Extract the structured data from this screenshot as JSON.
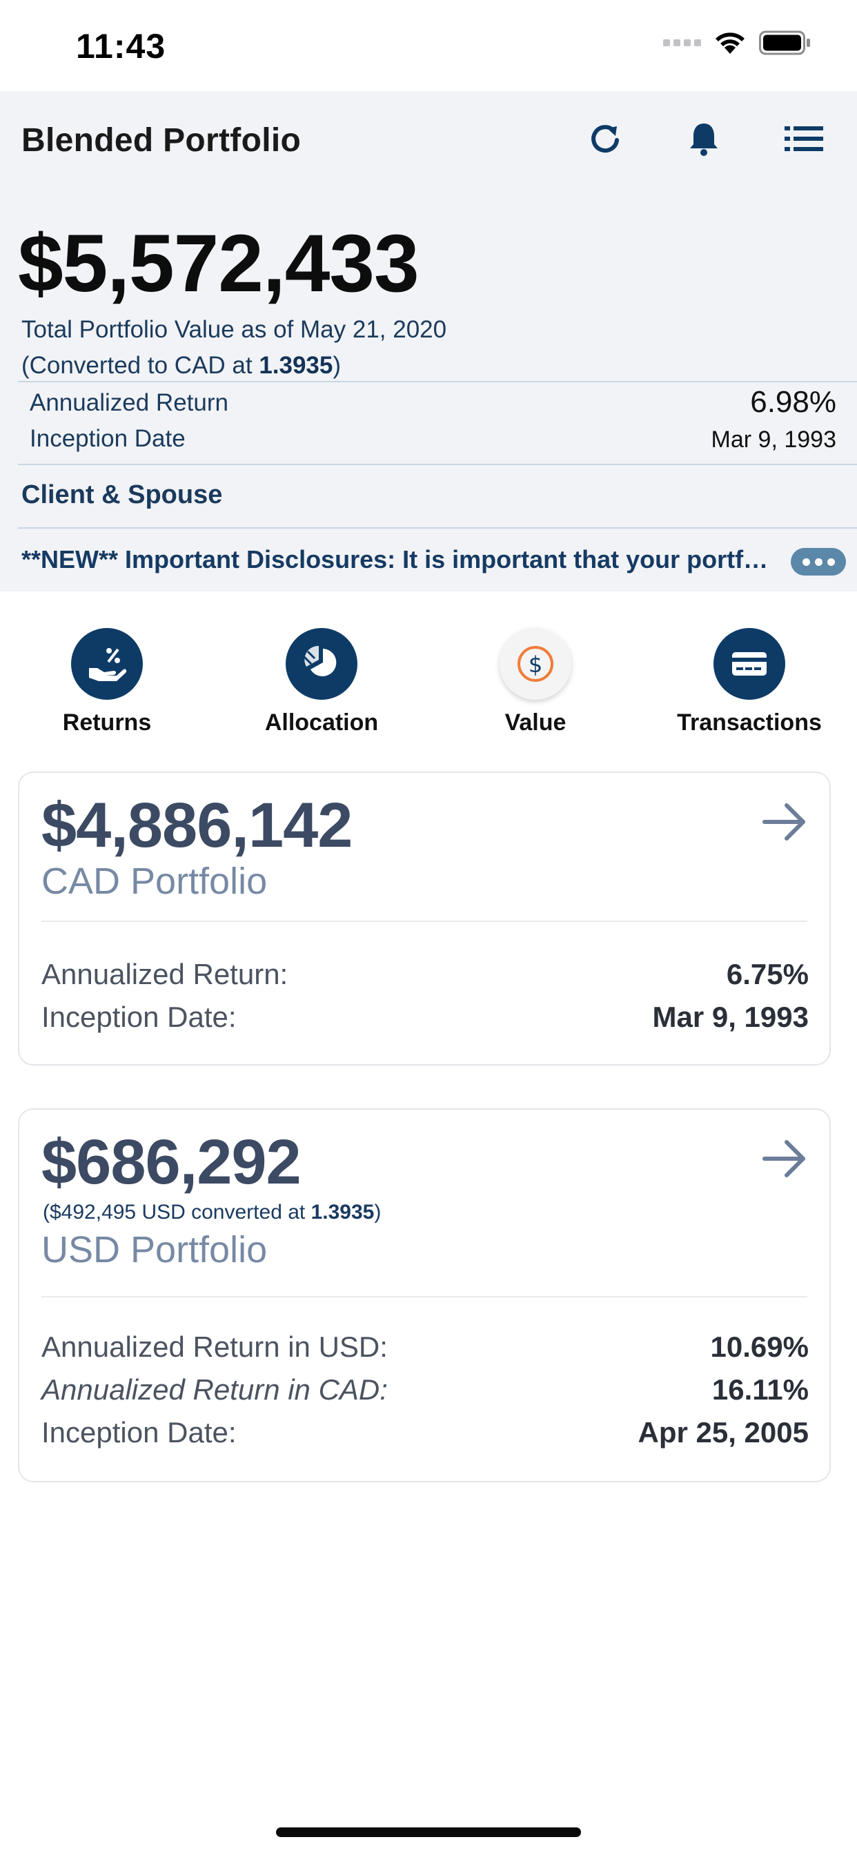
{
  "status_bar": {
    "time": "11:43"
  },
  "header": {
    "title": "Blended Portfolio",
    "icons": [
      "refresh-icon",
      "bell-icon",
      "menu-list-icon"
    ]
  },
  "summary": {
    "total_value": "$5,572,433",
    "caption": "Total Portfolio Value as of May 21, 2020",
    "convert_prefix": "(Converted to CAD at ",
    "convert_rate": "1.3935",
    "convert_suffix": ")",
    "annualized_return_label": "Annualized Return",
    "annualized_return_value": "6.98%",
    "inception_date_label": "Inception Date",
    "inception_date_value": "Mar 9, 1993"
  },
  "client_label": "Client & Spouse",
  "disclosure": "**NEW** Important Disclosures:  It is important that your portfolio information is reviewed",
  "actions": [
    {
      "label": "Returns",
      "icon": "hand-percent-icon"
    },
    {
      "label": "Allocation",
      "icon": "pie-chart-icon"
    },
    {
      "label": "Value",
      "icon": "dollar-circle-icon"
    },
    {
      "label": "Transactions",
      "icon": "credit-card-icon"
    }
  ],
  "cad_card": {
    "amount": "$4,886,142",
    "name": "CAD Portfolio",
    "rows": [
      {
        "label": "Annualized Return:",
        "value": "6.75%"
      },
      {
        "label": "Inception Date:",
        "value": "Mar 9, 1993"
      }
    ]
  },
  "usd_card": {
    "amount": "$686,292",
    "sub_prefix": "($492,495 USD converted at ",
    "sub_rate": "1.3935",
    "sub_suffix": ")",
    "name": "USD Portfolio",
    "rows": [
      {
        "label": "Annualized Return in USD:",
        "value": "10.69%"
      },
      {
        "label": "Annualized Return in CAD:",
        "value": "16.11%"
      },
      {
        "label": "Inception Date:",
        "value": "Apr 25, 2005"
      }
    ]
  },
  "colors": {
    "navy": "#0d3b66",
    "header_bg": "#f1f3f6",
    "accent_orange": "#f07d3a",
    "card_text": "#3c4a63"
  }
}
